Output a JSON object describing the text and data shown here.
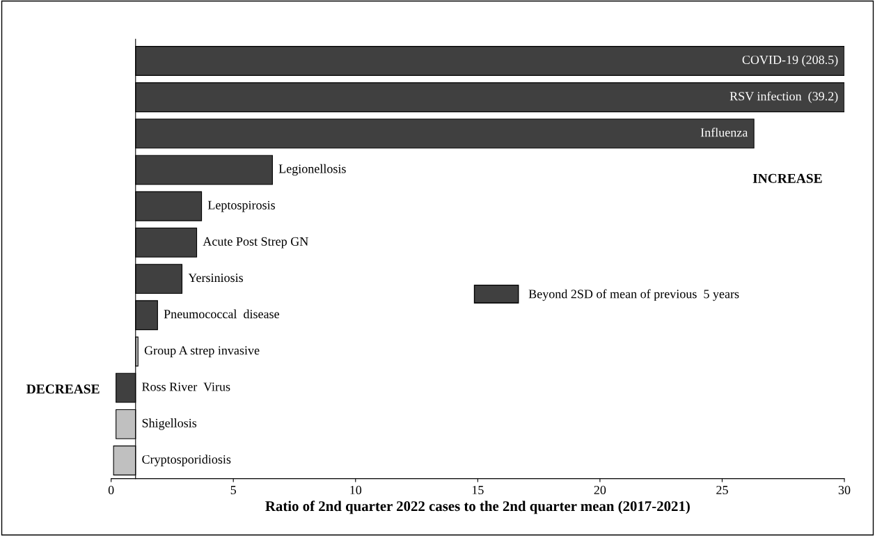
{
  "chart_data": {
    "type": "bar",
    "orientation": "horizontal",
    "xlabel": "Ratio of 2nd quarter 2022 cases to the 2nd quarter mean (2017-2021)",
    "categories": [
      "COVID-19 (208.5)",
      "RSV infection  (39.2)",
      "Influenza",
      "Legionellosis",
      "Leptospirosis",
      "Acute Post Strep GN",
      "Yersiniosis",
      "Pneumococcal  disease",
      "Group A strep invasive",
      "Ross River  Virus",
      "Shigellosis",
      "Cryptosporidiosis"
    ],
    "series": [
      {
        "name": "Beyond 2SD of mean of previous  5 years",
        "color": "#404040",
        "base": [
          1,
          1,
          1,
          1,
          1,
          1,
          1,
          1,
          null,
          1,
          null,
          null
        ],
        "values": [
          29,
          29,
          25.3,
          5.6,
          2.7,
          2.5,
          1.9,
          0.9,
          null,
          -0.8,
          null,
          null
        ]
      },
      {
        "color": "#c0c0c0",
        "base": [
          null,
          null,
          null,
          null,
          null,
          null,
          null,
          null,
          1,
          null,
          1,
          1
        ],
        "values": [
          null,
          null,
          null,
          null,
          null,
          null,
          null,
          null,
          0.1,
          null,
          -0.8,
          -0.9
        ]
      }
    ],
    "xlim": [
      0,
      30
    ],
    "xticks": [
      0,
      5,
      10,
      15,
      20,
      25,
      30
    ],
    "annotations": [
      "INCREASE",
      "DECREASE"
    ],
    "legend": "right",
    "grid": false
  }
}
